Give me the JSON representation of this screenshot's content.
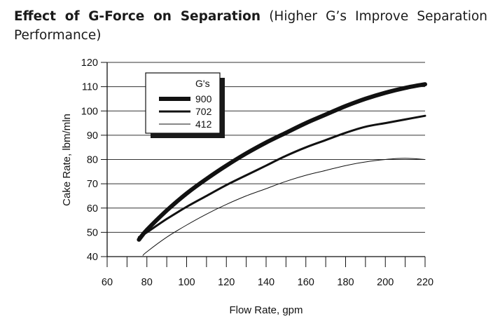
{
  "title": {
    "bold": "Effect of G-Force on Separation",
    "normal": "(Higher G’s Improve Separation Performance)"
  },
  "chart_data": {
    "type": "line",
    "xlabel": "Flow Rate, gpm",
    "ylabel": "Cake Rate, lbm/mln",
    "xlim": [
      60,
      220
    ],
    "ylim": [
      40,
      120
    ],
    "xticks": [
      60,
      80,
      100,
      120,
      140,
      160,
      180,
      200,
      220
    ],
    "yticks": [
      40,
      50,
      60,
      70,
      80,
      90,
      100,
      110,
      120
    ],
    "grid": "horizontal",
    "legend": {
      "title": "G's",
      "placement": "top-left"
    },
    "series": [
      {
        "name": "900",
        "color": "#111111",
        "x": [
          76,
          80,
          90,
          100,
          110,
          120,
          130,
          140,
          150,
          160,
          170,
          180,
          190,
          200,
          210,
          220
        ],
        "y": [
          47,
          51,
          59,
          66,
          72,
          77.5,
          82.5,
          87,
          91,
          95,
          98.5,
          102,
          105,
          107.5,
          109.5,
          111
        ]
      },
      {
        "name": "702",
        "color": "#111111",
        "x": [
          76,
          80,
          90,
          100,
          110,
          120,
          130,
          140,
          150,
          160,
          170,
          180,
          190,
          200,
          210,
          220
        ],
        "y": [
          48,
          50,
          55.5,
          60.5,
          65,
          69.5,
          73.5,
          77.5,
          81.5,
          85,
          88,
          91,
          93.5,
          95,
          96.5,
          98
        ]
      },
      {
        "name": "412",
        "color": "#111111",
        "x": [
          78,
          80,
          90,
          100,
          110,
          120,
          130,
          140,
          150,
          160,
          170,
          180,
          190,
          200,
          210,
          220
        ],
        "y": [
          40.5,
          42,
          48,
          53,
          57.5,
          61.5,
          65,
          68,
          71,
          73.5,
          75.5,
          77.5,
          79,
          80,
          80.5,
          80
        ]
      }
    ]
  }
}
